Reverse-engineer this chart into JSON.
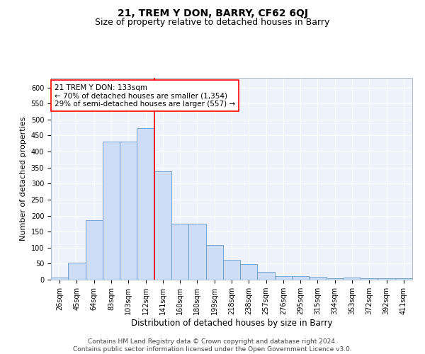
{
  "title": "21, TREM Y DON, BARRY, CF62 6QJ",
  "subtitle": "Size of property relative to detached houses in Barry",
  "xlabel": "Distribution of detached houses by size in Barry",
  "ylabel": "Number of detached properties",
  "categories": [
    "26sqm",
    "45sqm",
    "64sqm",
    "83sqm",
    "103sqm",
    "122sqm",
    "141sqm",
    "160sqm",
    "180sqm",
    "199sqm",
    "218sqm",
    "238sqm",
    "257sqm",
    "276sqm",
    "295sqm",
    "315sqm",
    "334sqm",
    "353sqm",
    "372sqm",
    "392sqm",
    "411sqm"
  ],
  "values": [
    7,
    52,
    185,
    430,
    430,
    473,
    338,
    175,
    175,
    108,
    62,
    48,
    25,
    12,
    12,
    9,
    5,
    6,
    5,
    5,
    5
  ],
  "bar_color": "#ccddf5",
  "bar_edge_color": "#6699cc",
  "vline_x_index": 5,
  "vline_color": "red",
  "annotation_text": "21 TREM Y DON: 133sqm\n← 70% of detached houses are smaller (1,354)\n29% of semi-detached houses are larger (557) →",
  "annotation_box_color": "white",
  "annotation_box_edge": "red",
  "ylim": [
    0,
    630
  ],
  "yticks": [
    0,
    50,
    100,
    150,
    200,
    250,
    300,
    350,
    400,
    450,
    500,
    550,
    600
  ],
  "bg_color": "#eef2fb",
  "grid_color": "white",
  "footer": "Contains HM Land Registry data © Crown copyright and database right 2024.\nContains public sector information licensed under the Open Government Licence v3.0.",
  "title_fontsize": 10,
  "subtitle_fontsize": 9,
  "xlabel_fontsize": 8.5,
  "ylabel_fontsize": 8,
  "tick_fontsize": 7,
  "annotation_fontsize": 7.5,
  "footer_fontsize": 6.5
}
